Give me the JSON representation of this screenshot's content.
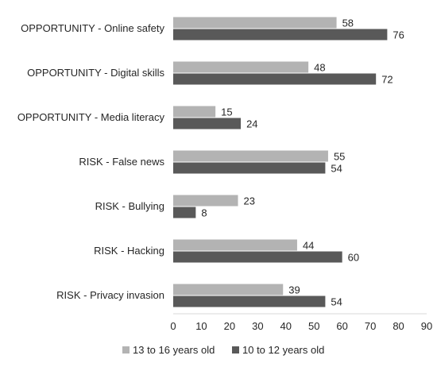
{
  "chart_data": {
    "type": "bar",
    "orientation": "horizontal",
    "categories": [
      "OPPORTUNITY - Online safety",
      "OPPORTUNITY - Digital skills",
      "OPPORTUNITY - Media literacy",
      "RISK - False news",
      "RISK - Bullying",
      "RISK - Hacking",
      "RISK - Privacy invasion"
    ],
    "series": [
      {
        "name": "13 to 16 years old",
        "color": "#b3b3b3",
        "values": [
          58,
          48,
          15,
          55,
          23,
          44,
          39
        ]
      },
      {
        "name": "10 to 12 years old",
        "color": "#595959",
        "values": [
          76,
          72,
          24,
          54,
          8,
          60,
          54
        ]
      }
    ],
    "xlim": [
      0,
      90
    ],
    "xticks": [
      "0",
      "10",
      "20",
      "30",
      "40",
      "50",
      "60",
      "70",
      "80",
      "90"
    ],
    "grid": false,
    "legend_position": "bottom"
  }
}
